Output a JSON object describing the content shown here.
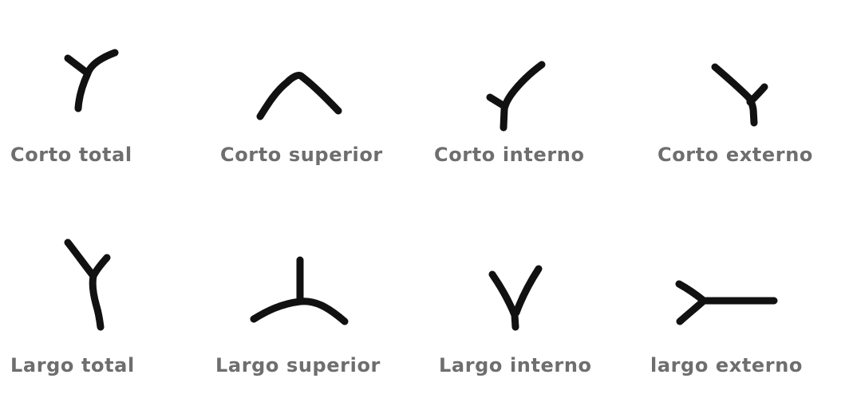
{
  "colors": {
    "stroke": "#111111",
    "label": "#6e6e6e",
    "background": "#ffffff"
  },
  "patterns": [
    {
      "label": "Corto total",
      "icon": "short-total-fork-icon"
    },
    {
      "label": "Corto superior",
      "icon": "short-upper-arch-icon"
    },
    {
      "label": "Corto interno",
      "icon": "short-inner-fork-icon"
    },
    {
      "label": "Corto externo",
      "icon": "short-outer-fork-icon"
    },
    {
      "label": "Largo total",
      "icon": "long-total-fork-icon"
    },
    {
      "label": "Largo superior",
      "icon": "long-upper-arch-icon"
    },
    {
      "label": "Largo interno",
      "icon": "long-inner-fork-icon"
    },
    {
      "label": "largo externo",
      "icon": "long-outer-fork-icon"
    }
  ]
}
